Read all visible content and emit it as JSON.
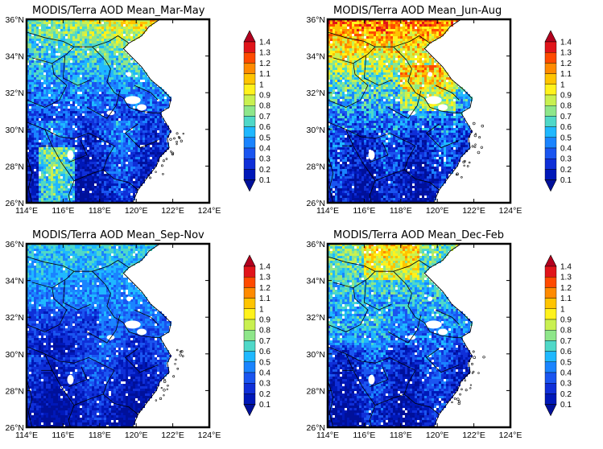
{
  "figure": {
    "panels": [
      {
        "title": "MODIS/Terra AOD Mean_Mar-May",
        "season": "mam"
      },
      {
        "title": "MODIS/Terra AOD Mean_Jun-Aug",
        "season": "jja"
      },
      {
        "title": "MODIS/Terra AOD Mean_Sep-Nov",
        "season": "son"
      },
      {
        "title": "MODIS/Terra AOD Mean_Dec-Feb",
        "season": "djf"
      }
    ],
    "lat_labels": [
      "36°N",
      "34°N",
      "32°N",
      "30°N",
      "28°N",
      "26°N"
    ],
    "lon_labels": [
      "114°E",
      "116°E",
      "118°E",
      "120°E",
      "122°E",
      "124°E"
    ],
    "colorbar_labels": [
      "1.4",
      "1.3",
      "1.2",
      "1.1",
      "1",
      "0.9",
      "0.8",
      "0.7",
      "0.6",
      "0.5",
      "0.4",
      "0.3",
      "0.2",
      "0.1"
    ],
    "colorbar_colors": [
      "#b2001e",
      "#e0141a",
      "#ff4a00",
      "#ff8a00",
      "#ffc400",
      "#fff21c",
      "#c9f050",
      "#8ee68a",
      "#4fd8c8",
      "#1fb8ff",
      "#1a84ff",
      "#1a55f0",
      "#0f2fd8",
      "#0018b8",
      "#00109a"
    ],
    "no_data_color": "#ffffff"
  }
}
